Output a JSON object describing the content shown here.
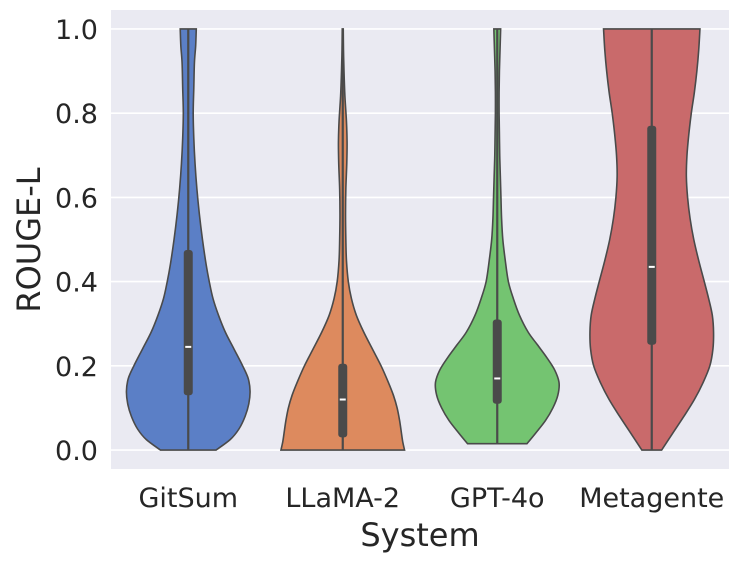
{
  "chart_data": {
    "type": "violin",
    "title": "",
    "xlabel": "System",
    "ylabel": "ROUGE-L",
    "ylim": [
      -0.045,
      1.045
    ],
    "yticks": [
      0.0,
      0.2,
      0.4,
      0.6,
      0.8,
      1.0
    ],
    "ytick_labels": [
      "0.0",
      "0.2",
      "0.4",
      "0.6",
      "0.8",
      "1.0"
    ],
    "grid": true,
    "background": "#eaeaf2",
    "edge_color": "#4a4a4a",
    "box_color": "#4a4a4a",
    "median_color": "#ffffff",
    "categories": [
      "GitSum",
      "LLaMA-2",
      "GPT-4o",
      "Metagente"
    ],
    "violins": [
      {
        "name": "GitSum",
        "color": "#5b7fc6",
        "min": 0.0,
        "q1": 0.13,
        "median": 0.245,
        "q3": 0.475,
        "max": 1.0,
        "profile": [
          [
            0.0,
            0.45
          ],
          [
            0.025,
            0.68
          ],
          [
            0.05,
            0.82
          ],
          [
            0.08,
            0.92
          ],
          [
            0.11,
            0.98
          ],
          [
            0.14,
            1.0
          ],
          [
            0.17,
            0.97
          ],
          [
            0.2,
            0.88
          ],
          [
            0.24,
            0.74
          ],
          [
            0.28,
            0.6
          ],
          [
            0.32,
            0.49
          ],
          [
            0.36,
            0.4
          ],
          [
            0.4,
            0.34
          ],
          [
            0.44,
            0.29
          ],
          [
            0.5,
            0.23
          ],
          [
            0.56,
            0.18
          ],
          [
            0.62,
            0.14
          ],
          [
            0.68,
            0.11
          ],
          [
            0.74,
            0.09
          ],
          [
            0.8,
            0.08
          ],
          [
            0.86,
            0.09
          ],
          [
            0.92,
            0.1
          ],
          [
            0.96,
            0.12
          ],
          [
            1.0,
            0.13
          ]
        ]
      },
      {
        "name": "LLaMA-2",
        "color": "#dd8a5e",
        "min": 0.0,
        "q1": 0.03,
        "median": 0.12,
        "q3": 0.205,
        "max": 1.0,
        "profile": [
          [
            0.0,
            1.0
          ],
          [
            0.02,
            0.97
          ],
          [
            0.04,
            0.95
          ],
          [
            0.07,
            0.92
          ],
          [
            0.1,
            0.88
          ],
          [
            0.13,
            0.82
          ],
          [
            0.16,
            0.74
          ],
          [
            0.2,
            0.62
          ],
          [
            0.24,
            0.48
          ],
          [
            0.28,
            0.34
          ],
          [
            0.32,
            0.22
          ],
          [
            0.36,
            0.14
          ],
          [
            0.4,
            0.09
          ],
          [
            0.45,
            0.06
          ],
          [
            0.5,
            0.05
          ],
          [
            0.56,
            0.045
          ],
          [
            0.62,
            0.05
          ],
          [
            0.68,
            0.065
          ],
          [
            0.73,
            0.07
          ],
          [
            0.78,
            0.06
          ],
          [
            0.84,
            0.035
          ],
          [
            0.9,
            0.02
          ],
          [
            0.95,
            0.012
          ],
          [
            1.0,
            0.008
          ]
        ]
      },
      {
        "name": "GPT-4o",
        "color": "#74c471",
        "min": 0.015,
        "q1": 0.11,
        "median": 0.17,
        "q3": 0.31,
        "max": 1.0,
        "profile": [
          [
            0.015,
            0.48
          ],
          [
            0.04,
            0.62
          ],
          [
            0.07,
            0.78
          ],
          [
            0.1,
            0.9
          ],
          [
            0.13,
            0.98
          ],
          [
            0.16,
            1.0
          ],
          [
            0.19,
            0.93
          ],
          [
            0.22,
            0.8
          ],
          [
            0.25,
            0.65
          ],
          [
            0.28,
            0.5
          ],
          [
            0.32,
            0.36
          ],
          [
            0.36,
            0.26
          ],
          [
            0.4,
            0.18
          ],
          [
            0.45,
            0.13
          ],
          [
            0.5,
            0.09
          ],
          [
            0.55,
            0.07
          ],
          [
            0.6,
            0.06
          ],
          [
            0.65,
            0.05
          ],
          [
            0.7,
            0.04
          ],
          [
            0.75,
            0.035
          ],
          [
            0.8,
            0.03
          ],
          [
            0.85,
            0.03
          ],
          [
            0.9,
            0.035
          ],
          [
            0.95,
            0.045
          ],
          [
            1.0,
            0.055
          ]
        ]
      },
      {
        "name": "Metagente",
        "color": "#c96a6b",
        "min": 0.0,
        "q1": 0.25,
        "median": 0.435,
        "q3": 0.77,
        "max": 1.0,
        "profile": [
          [
            0.0,
            0.16
          ],
          [
            0.04,
            0.34
          ],
          [
            0.08,
            0.52
          ],
          [
            0.12,
            0.69
          ],
          [
            0.16,
            0.83
          ],
          [
            0.2,
            0.94
          ],
          [
            0.24,
            0.99
          ],
          [
            0.28,
            1.0
          ],
          [
            0.32,
            0.98
          ],
          [
            0.36,
            0.92
          ],
          [
            0.4,
            0.85
          ],
          [
            0.45,
            0.76
          ],
          [
            0.5,
            0.68
          ],
          [
            0.55,
            0.62
          ],
          [
            0.6,
            0.58
          ],
          [
            0.65,
            0.56
          ],
          [
            0.7,
            0.57
          ],
          [
            0.75,
            0.6
          ],
          [
            0.8,
            0.64
          ],
          [
            0.85,
            0.69
          ],
          [
            0.9,
            0.73
          ],
          [
            0.95,
            0.76
          ],
          [
            1.0,
            0.78
          ]
        ]
      }
    ]
  }
}
